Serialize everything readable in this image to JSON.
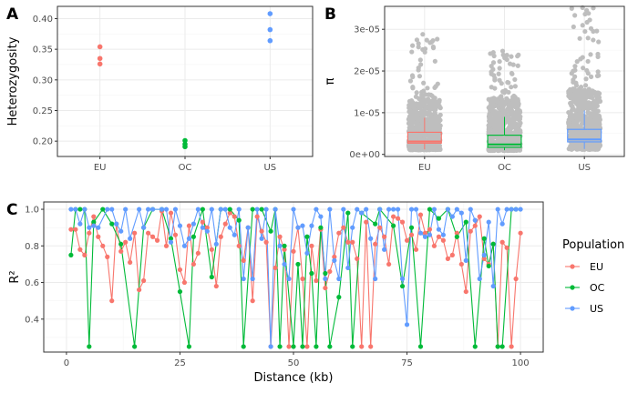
{
  "figure": {
    "panel_labels": [
      "A",
      "B",
      "C"
    ]
  },
  "chart_data": [
    {
      "panel": "A",
      "type": "scatter",
      "ylabel": "Heterozygosity",
      "xlabel": "",
      "categories": [
        "EU",
        "OC",
        "US"
      ],
      "ylim": [
        0.175,
        0.42
      ],
      "yticks": [
        0.2,
        0.25,
        0.3,
        0.35,
        0.4
      ],
      "ytick_labels": [
        "0.20",
        "0.25",
        "0.30",
        "0.35",
        "0.40"
      ],
      "grid": true,
      "series": [
        {
          "category": "EU",
          "color": "#F8766D",
          "values": [
            0.354,
            0.335,
            0.326
          ]
        },
        {
          "category": "OC",
          "color": "#00BA38",
          "values": [
            0.201,
            0.195,
            0.191
          ]
        },
        {
          "category": "US",
          "color": "#619CFF",
          "values": [
            0.408,
            0.382,
            0.364
          ]
        }
      ]
    },
    {
      "panel": "B",
      "type": "box",
      "ylabel": "π",
      "xlabel": "",
      "categories": [
        "EU",
        "OC",
        "US"
      ],
      "ylim": [
        -5e-07,
        3.55e-05
      ],
      "yticks": [
        0,
        1e-05,
        2e-05,
        3e-05
      ],
      "ytick_labels": [
        "0e+00",
        "1e-05",
        "2e-05",
        "3e-05"
      ],
      "grid": true,
      "point_color": "#BEBEBE",
      "boxes": [
        {
          "category": "EU",
          "color": "#F8766D",
          "q1": 2.7e-06,
          "median": 3.1e-06,
          "q3": 5.3e-06,
          "whisker_low": 1.2e-06,
          "whisker_high": 8.8e-06,
          "points_max": 2.88e-05
        },
        {
          "category": "OC",
          "color": "#00BA38",
          "q1": 1.7e-06,
          "median": 2.4e-06,
          "q3": 4.6e-06,
          "whisker_low": 1e-06,
          "whisker_high": 9e-06,
          "points_max": 2.48e-05
        },
        {
          "category": "US",
          "color": "#619CFF",
          "q1": 3e-06,
          "median": 3.6e-06,
          "q3": 6e-06,
          "whisker_low": 1.3e-06,
          "whisker_high": 1.05e-05,
          "points_max": 3.52e-05
        }
      ]
    },
    {
      "panel": "C",
      "type": "line",
      "xlabel": "Distance (kb)",
      "ylabel": "R²",
      "xlim": [
        -5,
        105
      ],
      "ylim": [
        0.22,
        1.04
      ],
      "xticks": [
        0,
        25,
        50,
        75,
        100
      ],
      "xtick_labels": [
        "0",
        "25",
        "50",
        "75",
        "100"
      ],
      "yticks": [
        0.4,
        0.6,
        0.8,
        1.0
      ],
      "ytick_labels": [
        "0.4",
        "0.6",
        "0.8",
        "1.0"
      ],
      "grid": true,
      "legend": {
        "title": "Population",
        "position": "right"
      },
      "series": [
        {
          "name": "EU",
          "color": "#F8766D",
          "x": [
            1,
            2,
            3,
            4,
            5,
            6,
            7,
            8,
            9,
            10,
            11,
            12,
            13,
            14,
            15,
            16,
            17,
            18,
            19,
            20,
            21,
            22,
            23,
            24,
            25,
            26,
            27,
            28,
            29,
            30,
            31,
            32,
            33,
            34,
            35,
            36,
            37,
            38,
            39,
            40,
            41,
            42,
            43,
            44,
            45,
            46,
            47,
            48,
            49,
            50,
            51,
            52,
            53,
            54,
            55,
            56,
            57,
            58,
            59,
            60,
            61,
            62,
            63,
            64,
            65,
            66,
            67,
            68,
            69,
            70,
            71,
            72,
            73,
            74,
            75,
            76,
            77,
            78,
            79,
            80,
            81,
            82,
            83,
            84,
            85,
            86,
            87,
            88,
            89,
            90,
            91,
            92,
            93,
            94,
            95,
            96,
            97,
            98,
            99,
            100
          ],
          "y": [
            0.89,
            0.89,
            0.78,
            0.75,
            0.87,
            0.96,
            0.85,
            0.8,
            0.74,
            0.5,
            0.92,
            0.77,
            0.82,
            0.71,
            0.87,
            0.56,
            0.61,
            0.87,
            0.85,
            0.83,
            0.99,
            0.8,
            0.98,
            0.86,
            0.67,
            0.6,
            0.91,
            0.7,
            0.76,
            0.93,
            0.9,
            0.78,
            0.58,
            0.85,
            0.92,
            0.98,
            0.96,
            0.8,
            0.72,
            0.9,
            0.5,
            0.96,
            0.88,
            0.82,
            0.25,
            0.68,
            0.85,
            0.78,
            0.25,
            0.77,
            0.9,
            0.62,
            0.25,
            0.8,
            0.61,
            0.89,
            0.57,
            0.66,
            0.74,
            0.87,
            0.9,
            0.82,
            0.82,
            0.73,
            0.25,
            0.93,
            0.25,
            0.81,
            0.9,
            0.85,
            0.7,
            0.96,
            0.95,
            0.93,
            0.83,
            0.86,
            0.78,
            0.97,
            0.87,
            0.89,
            0.8,
            0.85,
            0.83,
            0.73,
            0.75,
            0.87,
            0.7,
            0.55,
            0.88,
            0.91,
            0.96,
            0.73,
            0.7,
            0.81,
            0.25,
            0.82,
            0.79,
            0.25,
            0.62,
            0.87
          ]
        },
        {
          "name": "OC",
          "color": "#00BA38",
          "x": [
            1,
            2,
            3,
            4,
            5,
            6,
            8,
            10,
            12,
            15,
            17,
            19,
            21,
            23,
            25,
            27,
            28,
            30,
            32,
            34,
            36,
            38,
            39,
            41,
            43,
            45,
            46,
            47,
            48,
            50,
            51,
            52,
            53,
            54,
            55,
            56,
            57,
            58,
            60,
            62,
            63,
            65,
            68,
            69,
            72,
            74,
            76,
            78,
            80,
            82,
            84,
            86,
            88,
            90,
            92,
            93,
            94,
            95,
            96,
            98,
            99
          ],
          "y": [
            0.75,
            1.0,
            1.0,
            1.0,
            0.25,
            0.93,
            1.0,
            0.92,
            0.81,
            0.25,
            0.9,
            1.0,
            1.0,
            0.84,
            0.55,
            0.25,
            0.85,
            1.0,
            0.63,
            1.0,
            1.0,
            0.94,
            0.25,
            1.0,
            1.0,
            0.88,
            1.0,
            0.25,
            0.8,
            0.25,
            0.7,
            0.25,
            0.85,
            0.65,
            0.25,
            0.9,
            0.65,
            0.25,
            0.52,
            0.98,
            0.25,
            0.98,
            0.92,
            1.0,
            0.91,
            0.58,
            0.9,
            0.25,
            1.0,
            0.95,
            1.0,
            0.85,
            0.93,
            0.25,
            0.84,
            0.69,
            0.81,
            0.25,
            0.25,
            1.0,
            1.0
          ]
        },
        {
          "name": "US",
          "color": "#619CFF",
          "x": [
            1,
            2,
            3,
            4,
            5,
            6,
            7,
            9,
            10,
            11,
            12,
            13,
            14,
            16,
            17,
            18,
            19,
            21,
            22,
            23,
            24,
            25,
            26,
            27,
            28,
            29,
            30,
            31,
            32,
            33,
            34,
            35,
            36,
            37,
            38,
            39,
            40,
            41,
            42,
            43,
            44,
            45,
            46,
            47,
            48,
            49,
            50,
            51,
            52,
            53,
            54,
            55,
            56,
            57,
            58,
            59,
            60,
            61,
            62,
            63,
            64,
            65,
            66,
            67,
            68,
            69,
            70,
            71,
            72,
            73,
            74,
            75,
            76,
            77,
            78,
            79,
            80,
            81,
            82,
            83,
            84,
            85,
            86,
            87,
            88,
            89,
            90,
            91,
            92,
            93,
            94,
            95,
            96,
            97,
            98,
            99,
            100
          ],
          "y": [
            1.0,
            1.0,
            0.92,
            1.0,
            0.9,
            0.91,
            0.9,
            1.0,
            1.0,
            0.92,
            0.88,
            1.0,
            0.84,
            1.0,
            0.9,
            1.0,
            1.0,
            1.0,
            1.0,
            0.82,
            1.0,
            0.91,
            0.8,
            0.84,
            0.92,
            1.0,
            0.9,
            0.88,
            1.0,
            0.81,
            1.0,
            1.0,
            0.9,
            0.86,
            1.0,
            0.62,
            0.9,
            0.62,
            1.0,
            0.84,
            1.0,
            0.25,
            1.0,
            0.8,
            0.7,
            0.62,
            1.0,
            0.9,
            0.91,
            0.76,
            0.91,
            1.0,
            0.96,
            0.62,
            1.0,
            0.72,
            0.62,
            1.0,
            0.68,
            0.9,
            1.0,
            0.98,
            1.0,
            0.84,
            0.62,
            1.0,
            0.78,
            1.0,
            1.0,
            1.0,
            0.62,
            0.37,
            1.0,
            1.0,
            0.87,
            0.85,
            0.86,
            1.0,
            0.89,
            0.86,
            1.0,
            0.96,
            1.0,
            0.98,
            0.72,
            1.0,
            0.94,
            0.62,
            0.75,
            0.93,
            0.58,
            1.0,
            0.92,
            1.0,
            1.0,
            1.0,
            1.0
          ]
        }
      ]
    }
  ]
}
